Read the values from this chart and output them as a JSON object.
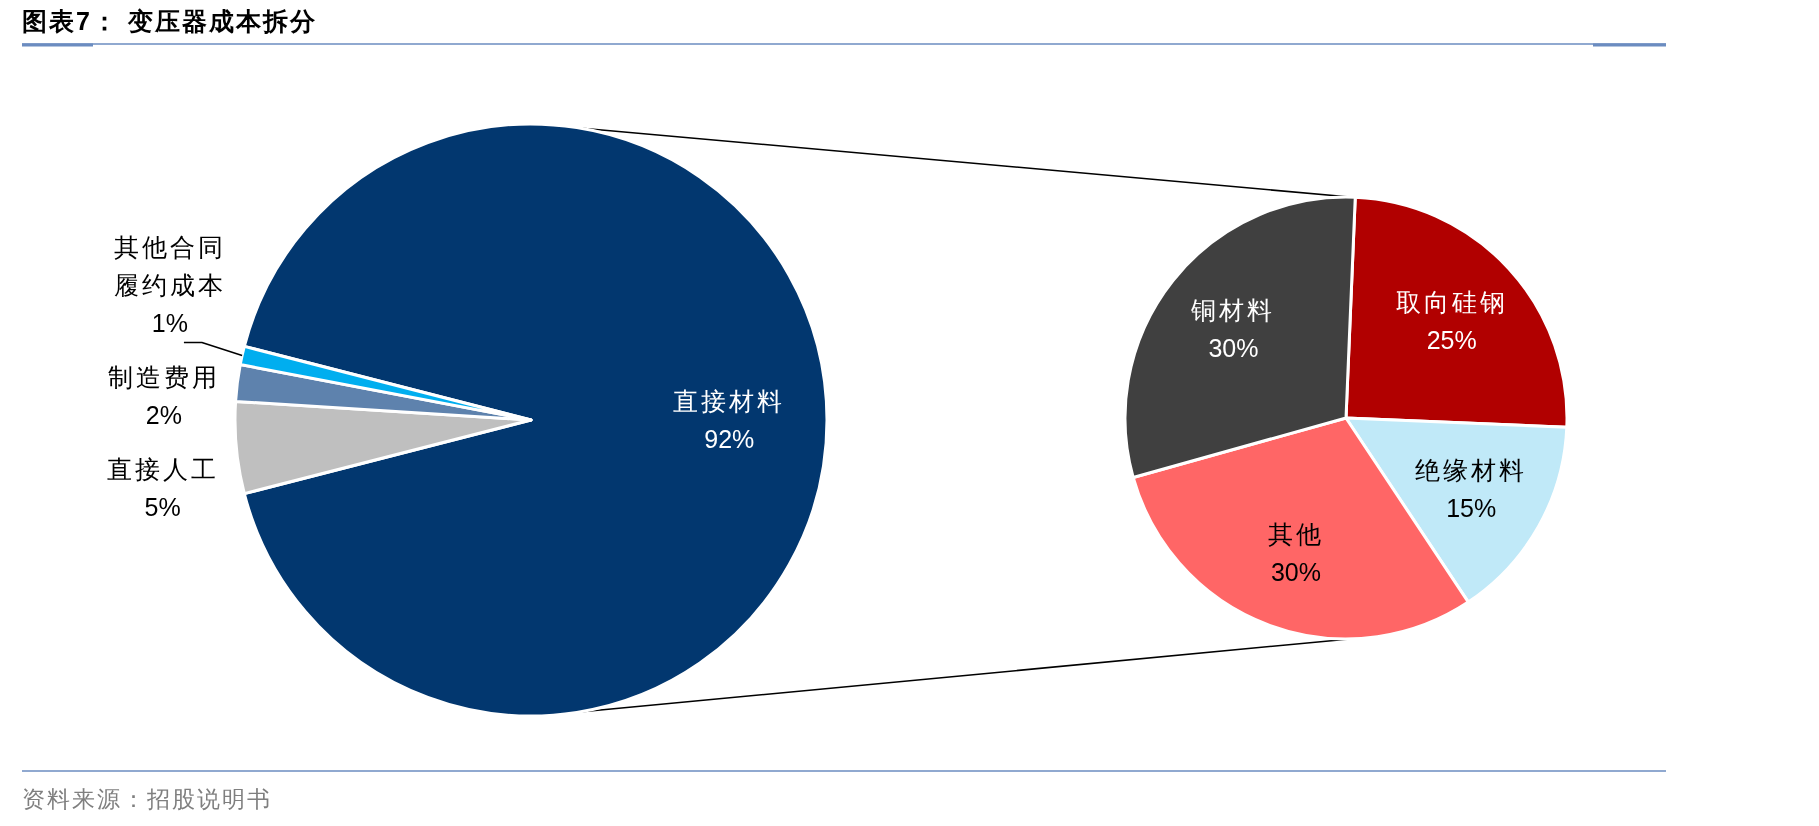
{
  "chart_data": [
    {
      "type": "pie",
      "title": "图表7： 变压器成本拆分",
      "categories": [
        "直接材料",
        "直接人工",
        "制造费用",
        "其他合同履约成本"
      ],
      "values": [
        92,
        5,
        2,
        1
      ],
      "value_labels": [
        "92%",
        "5%",
        "2%",
        "1%"
      ],
      "colors": [
        "#02376f",
        "#bfbfbf",
        "#5e82ad",
        "#00aeef"
      ],
      "annotations": [
        "资料来源：招股说明书"
      ]
    },
    {
      "type": "pie",
      "categories": [
        "取向硅钢",
        "绝缘材料",
        "其他",
        "铜材料"
      ],
      "values": [
        25,
        15,
        30,
        30
      ],
      "value_labels": [
        "25%",
        "15%",
        "30%",
        "30%"
      ],
      "colors": [
        "#b10000",
        "#c0e9f8",
        "#ff6666",
        "#404040"
      ]
    }
  ]
}
